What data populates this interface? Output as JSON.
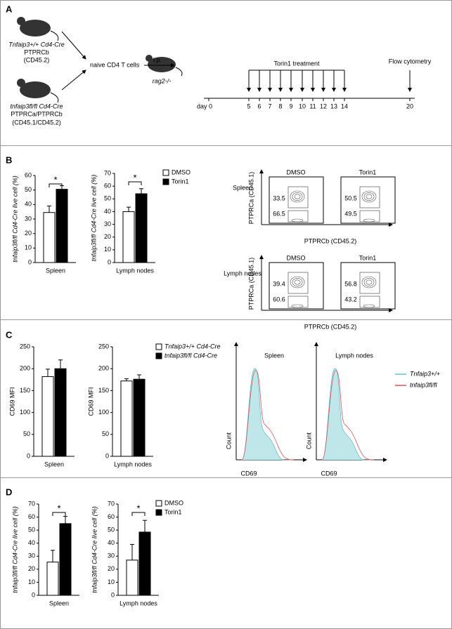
{
  "panel_letters": [
    "A",
    "B",
    "C",
    "D"
  ],
  "diagram": {
    "donor1": [
      "Tnfaip3+/+ Cd4-Cre",
      "PTPRCb",
      "(CD45.2)"
    ],
    "donor2": [
      "tnfaip3fl/fl Cd4-Cre",
      "PTPRCa/PTPRCb",
      "(CD45.1/CD45.2)"
    ],
    "cells": "naive CD4 T cells",
    "route": "i.p.",
    "recipient": "rag2-/-",
    "treatment": "Torin1 treatment",
    "readout": "Flow cytometry",
    "days": [
      "day 0",
      "5",
      "6",
      "7",
      "8",
      "9",
      "10",
      "11",
      "12",
      "13",
      "14",
      "20"
    ]
  },
  "chart_data": [
    {
      "type": "bar",
      "ylabel": "tnfaip3fl/fl Cd4-Cre live cell (%)",
      "categories": [
        "Spleen"
      ],
      "annotation": "*",
      "ylim": [
        0,
        60
      ],
      "yticks": [
        0,
        10,
        20,
        30,
        40,
        50,
        60
      ],
      "series": [
        {
          "color": "#ffffff",
          "values": [
            34.5
          ],
          "errors": [
            4.5
          ]
        },
        {
          "color": "#000000",
          "values": [
            50.5
          ],
          "errors": [
            2.5
          ]
        }
      ]
    },
    {
      "type": "bar",
      "ylabel": "tnfaip3fl/fl Cd4-Cre live cell (%)",
      "categories": [
        "Lymph nodes"
      ],
      "annotation": "*",
      "ylim": [
        0,
        70
      ],
      "yticks": [
        0,
        10,
        20,
        30,
        40,
        50,
        60,
        70
      ],
      "series": [
        {
          "name": "DMSO",
          "color": "#ffffff",
          "values": [
            40
          ],
          "errors": [
            3.5
          ]
        },
        {
          "name": "Torin1",
          "color": "#000000",
          "values": [
            54
          ],
          "errors": [
            4
          ]
        }
      ]
    },
    {
      "type": "bar",
      "ylabel": "CD69 MFI",
      "categories": [
        "Spleen"
      ],
      "ylim": [
        0,
        250
      ],
      "yticks": [
        0,
        50,
        100,
        150,
        200,
        250
      ],
      "series": [
        {
          "color": "#ffffff",
          "values": [
            182
          ],
          "errors": [
            17
          ]
        },
        {
          "color": "#000000",
          "values": [
            200
          ],
          "errors": [
            20
          ]
        }
      ]
    },
    {
      "type": "bar",
      "ylabel": "CD69 MFI",
      "categories": [
        "Lymph nodes"
      ],
      "ylim": [
        0,
        250
      ],
      "yticks": [
        0,
        50,
        100,
        150,
        200,
        250
      ],
      "series": [
        {
          "name": "Tnfaip3+/+ Cd4-Cre",
          "color": "#ffffff",
          "values": [
            172
          ],
          "errors": [
            5
          ]
        },
        {
          "name": "tnfaip3fl/fl Cd4-Cre",
          "color": "#000000",
          "values": [
            176
          ],
          "errors": [
            10
          ]
        }
      ]
    },
    {
      "type": "bar",
      "ylabel": "tnfaip3fl/fl Cd4-Cre live cell (%)",
      "categories": [
        "Spleen"
      ],
      "annotation": "*",
      "ylim": [
        0,
        70
      ],
      "yticks": [
        0,
        10,
        20,
        30,
        40,
        50,
        60,
        70
      ],
      "series": [
        {
          "color": "#ffffff",
          "values": [
            25.5
          ],
          "errors": [
            9
          ]
        },
        {
          "color": "#000000",
          "values": [
            55
          ],
          "errors": [
            5.5
          ]
        }
      ]
    },
    {
      "type": "bar",
      "ylabel": "tnfaip3fl/fl Cd4-Cre live cell (%)",
      "categories": [
        "Lymph nodes"
      ],
      "annotation": "*",
      "ylim": [
        0,
        70
      ],
      "yticks": [
        0,
        10,
        20,
        30,
        40,
        50,
        60,
        70
      ],
      "series": [
        {
          "name": "DMSO",
          "color": "#ffffff",
          "values": [
            27
          ],
          "errors": [
            12
          ]
        },
        {
          "name": "Torin1",
          "color": "#000000",
          "values": [
            48.5
          ],
          "errors": [
            9
          ]
        }
      ]
    }
  ],
  "flow_plots": {
    "columns": [
      "DMSO",
      "Torin1"
    ],
    "ylabel": "PTPRCa (CD45.1)",
    "xlabel": "PTPRCb (CD45.2)",
    "rows": [
      {
        "label": "Spleen",
        "gates": [
          [
            "33.5",
            "66.5"
          ],
          [
            "50.5",
            "49.5"
          ]
        ]
      },
      {
        "label": "Lymph nodes",
        "gates": [
          [
            "39.4",
            "60.6"
          ],
          [
            "56.8",
            "43.2"
          ]
        ]
      }
    ]
  },
  "histograms": {
    "titles": [
      "Spleen",
      "Lymph nodes"
    ],
    "ylabel": "Count",
    "xlabel": "CD69",
    "legend": [
      {
        "name": "Tnfaip3+/+",
        "color": "#5bc8c8"
      },
      {
        "name": "tnfaip3fl/fl",
        "color": "#d9545c"
      }
    ]
  }
}
